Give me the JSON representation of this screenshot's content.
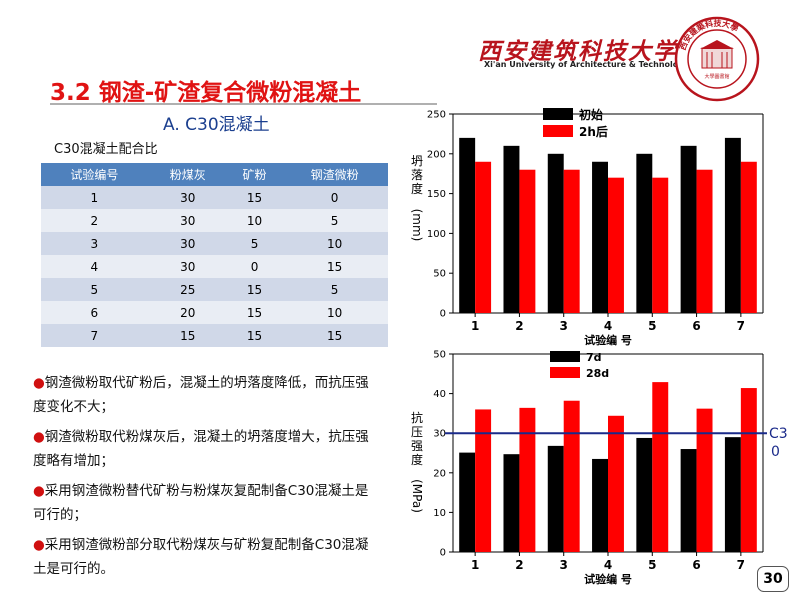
{
  "header": {
    "university_cn": "西安建筑科技大学",
    "university_en": "Xi'an University of Architecture & Technology",
    "seal_inner_text": "大學圖書館",
    "seal_ring_text": "西安建築科技大學"
  },
  "slide": {
    "title": "3.2 钢渣-矿渣复合微粉混凝土",
    "section": "A. C30混凝土",
    "page_number": "30"
  },
  "table": {
    "caption": "C30混凝土配合比",
    "headers": [
      "试验编号",
      "粉煤灰",
      "矿粉",
      "钢渣微粉"
    ],
    "rows": [
      [
        "1",
        "30",
        "15",
        "0"
      ],
      [
        "2",
        "30",
        "10",
        "5"
      ],
      [
        "3",
        "30",
        "5",
        "10"
      ],
      [
        "4",
        "30",
        "0",
        "15"
      ],
      [
        "5",
        "25",
        "15",
        "5"
      ],
      [
        "6",
        "20",
        "15",
        "10"
      ],
      [
        "7",
        "15",
        "15",
        "15"
      ]
    ]
  },
  "bullets": [
    "钢渣微粉取代矿粉后，混凝土的坍落度降低，而抗压强度变化不大；",
    "钢渣微粉取代粉煤灰后，混凝土的坍落度增大，抗压强度略有增加；",
    "采用钢渣微粉替代矿粉与粉煤灰复配制备C30混凝土是可行的；",
    "采用钢渣微粉部分取代粉煤灰与矿粉复配制备C30混凝土是可行的。"
  ],
  "colors": {
    "title_red": "#e01313",
    "section_blue": "#1b3f8f",
    "table_header": "#4f81bd",
    "series_black": "#000000",
    "series_red": "#ff0000",
    "ref_line": "#1a2a8a"
  },
  "chart_data": [
    {
      "type": "bar",
      "categories": [
        "1",
        "2",
        "3",
        "4",
        "5",
        "6",
        "7"
      ],
      "series": [
        {
          "name": "初始",
          "color": "#000000",
          "values": [
            220,
            210,
            200,
            190,
            200,
            210,
            220
          ]
        },
        {
          "name": "2h后",
          "color": "#ff0000",
          "values": [
            190,
            180,
            180,
            170,
            170,
            180,
            190
          ]
        }
      ],
      "xlabel": "试验编  号",
      "ylabel_cn": "坍落度",
      "ylabel_unit": "(mm)",
      "ylim": [
        0,
        250
      ],
      "yticks": [
        "0",
        "50",
        "100",
        "150",
        "200",
        "250"
      ],
      "legend": "top-left",
      "grid": false
    },
    {
      "type": "bar",
      "categories": [
        "1",
        "2",
        "3",
        "4",
        "5",
        "6",
        "7"
      ],
      "series": [
        {
          "name": "7d",
          "color": "#000000",
          "values": [
            25.1,
            24.7,
            26.8,
            23.5,
            28.8,
            26.0,
            29.0
          ]
        },
        {
          "name": "28d",
          "color": "#ff0000",
          "values": [
            36.0,
            36.4,
            38.2,
            34.4,
            42.9,
            36.2,
            41.4
          ]
        }
      ],
      "reference_line": {
        "value": 30,
        "label": "C30",
        "color": "#1a2a8a"
      },
      "xlabel": "试验编  号",
      "ylabel_cn": "抗压强度",
      "ylabel_unit": "(MPa)",
      "ylim": [
        0,
        50
      ],
      "yticks": [
        "0",
        "10",
        "20",
        "30",
        "40",
        "50"
      ],
      "legend": "top-left",
      "grid": false
    }
  ]
}
